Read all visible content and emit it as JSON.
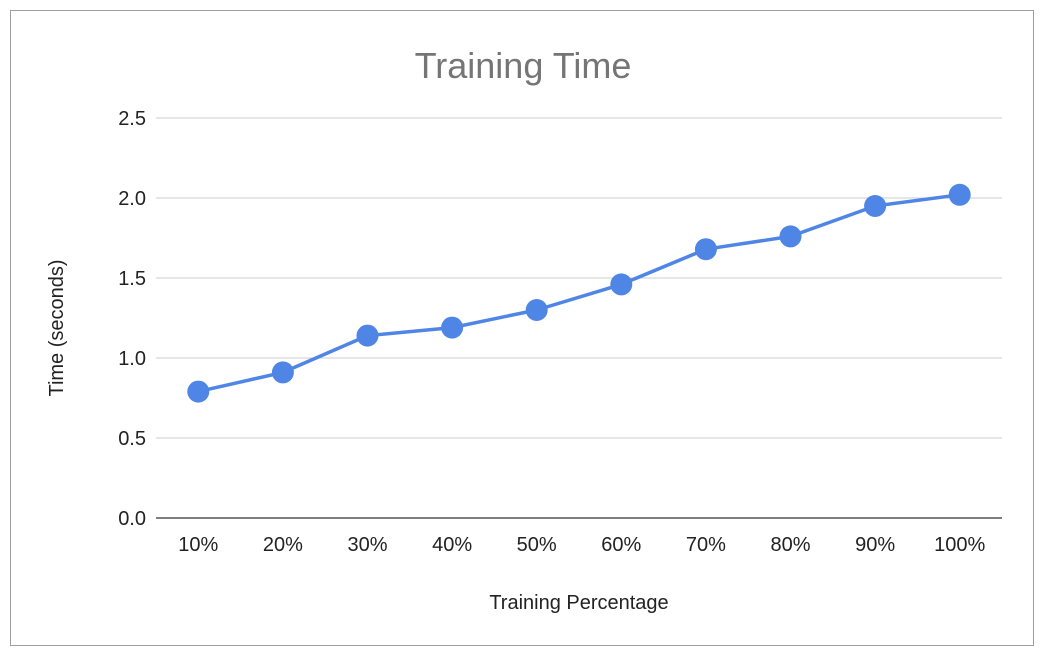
{
  "chart_data": {
    "type": "line",
    "title": "Training Time",
    "xlabel": "Training Percentage",
    "ylabel": "Time (seconds)",
    "categories": [
      "10%",
      "20%",
      "30%",
      "40%",
      "50%",
      "60%",
      "70%",
      "80%",
      "90%",
      "100%"
    ],
    "series": [
      {
        "name": "Time (seconds)",
        "values": [
          0.79,
          0.91,
          1.14,
          1.19,
          1.3,
          1.46,
          1.68,
          1.76,
          1.95,
          2.02
        ]
      }
    ],
    "ylim": [
      0,
      2.5
    ],
    "yticks": [
      "0.0",
      "0.5",
      "1.0",
      "1.5",
      "2.0",
      "2.5"
    ],
    "grid": true,
    "legend": "none",
    "colors": {
      "series": "#4f86e6",
      "grid": "#cccccc",
      "axis": "#333333",
      "title": "#757575",
      "frame": "#9e9e9e"
    }
  }
}
